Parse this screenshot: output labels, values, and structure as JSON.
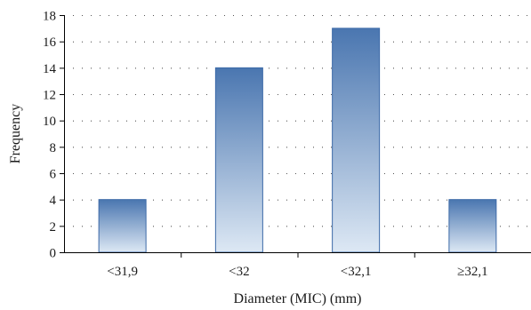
{
  "chart_data": {
    "type": "bar",
    "categories": [
      "<31,9",
      "<32",
      "<32,1",
      "≥32,1"
    ],
    "values": [
      4,
      14,
      17,
      4
    ],
    "xlabel": "Diameter (MIC) (mm)",
    "ylabel": "Frequency",
    "ylim": [
      0,
      18
    ],
    "yticks": [
      0,
      2,
      4,
      6,
      8,
      10,
      12,
      14,
      16,
      18
    ],
    "grid": "horizontal dotted",
    "legend": "none",
    "colors": {
      "bar_top": "#4a76b0",
      "bar_bottom": "#dde8f4",
      "bar_border": "#3c6aa8",
      "axis": "#000000",
      "grid": "#555555"
    }
  }
}
